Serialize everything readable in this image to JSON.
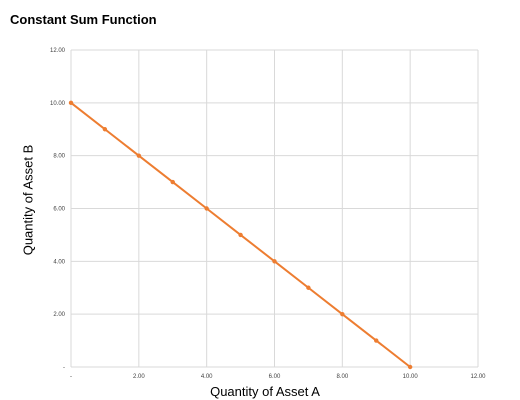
{
  "chart_data": {
    "type": "line",
    "title": "Constant Sum Function",
    "xlabel": "Quantity of Asset A",
    "ylabel": "Quantity of Asset B",
    "xlim": [
      0,
      12
    ],
    "ylim": [
      0,
      12
    ],
    "x_ticks": [
      "-",
      "2.00",
      "4.00",
      "6.00",
      "8.00",
      "10.00",
      "12.00"
    ],
    "y_ticks": [
      "-",
      "2.00",
      "4.00",
      "6.00",
      "8.00",
      "10.00",
      "12.00"
    ],
    "grid": true,
    "legend": "none",
    "series": [
      {
        "color": "#ED7D31",
        "x": [
          0,
          1,
          2,
          3,
          4,
          5,
          6,
          7,
          8,
          9,
          10
        ],
        "y": [
          10,
          9,
          8,
          7,
          6,
          5,
          4,
          3,
          2,
          1,
          0
        ]
      }
    ]
  }
}
